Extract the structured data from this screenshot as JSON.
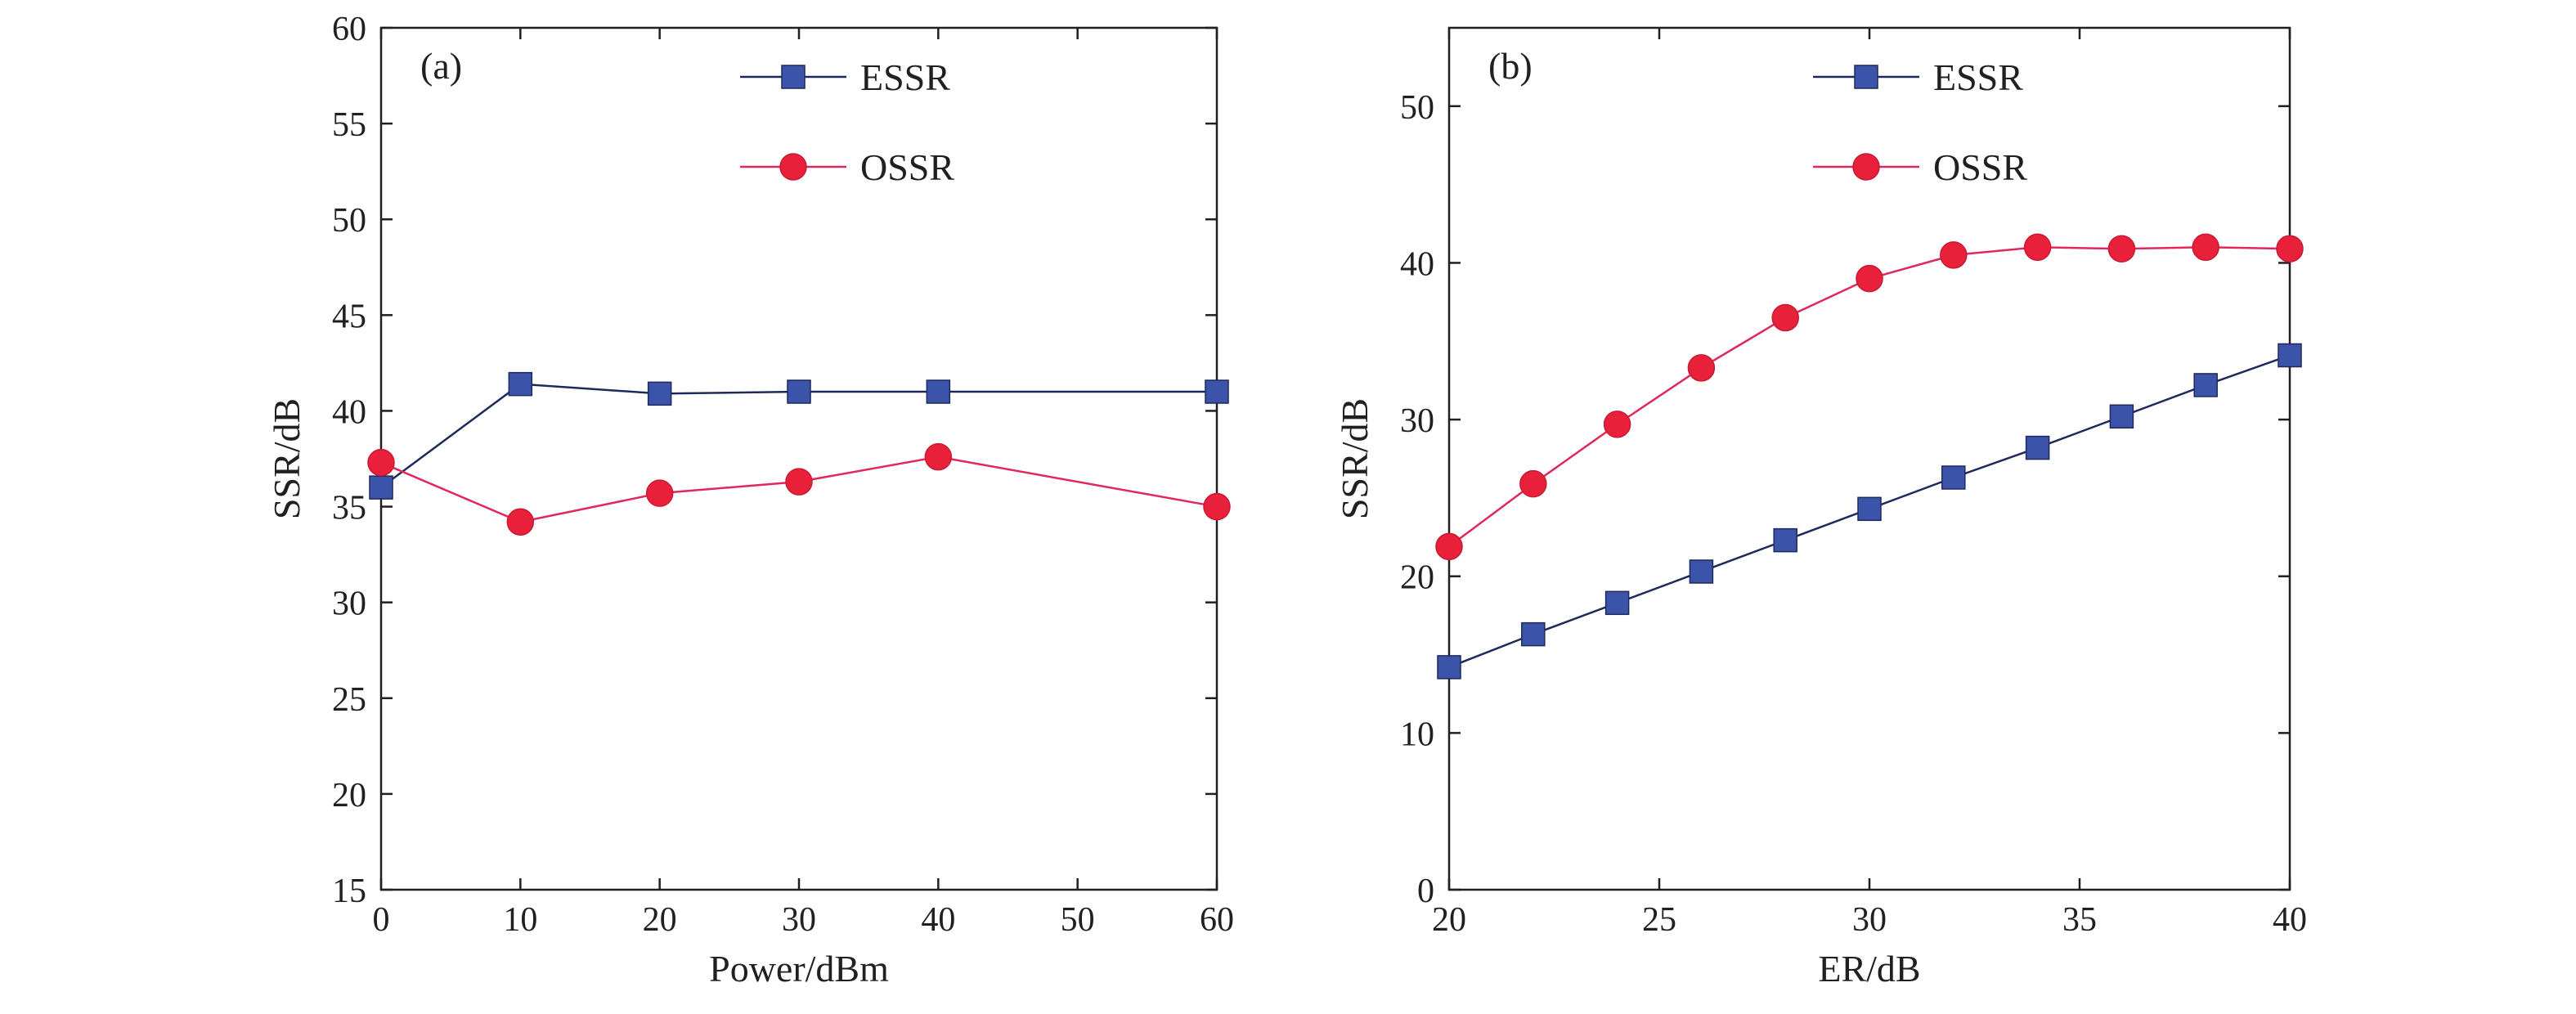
{
  "colors": {
    "essr_line": "#1f2a5c",
    "essr_marker": "#3b53a8",
    "ossr_line": "#e0285a",
    "ossr_marker": "#e8203a",
    "axis": "#231f20"
  },
  "chart_data": [
    {
      "type": "line",
      "panel_label": "(a)",
      "xlabel": "Power/dBm",
      "ylabel": "SSR/dB",
      "xlim": [
        0,
        60
      ],
      "ylim": [
        15,
        60
      ],
      "xticks": [
        0,
        10,
        20,
        30,
        40,
        50,
        60
      ],
      "yticks": [
        15,
        20,
        25,
        30,
        35,
        40,
        45,
        50,
        55,
        60
      ],
      "grid": false,
      "legend_position": "top-right",
      "series": [
        {
          "name": "ESSR",
          "marker": "square",
          "x": [
            0,
            10,
            20,
            30,
            40,
            60
          ],
          "y": [
            36.0,
            41.4,
            40.9,
            41.0,
            41.0,
            41.0
          ]
        },
        {
          "name": "OSSR",
          "marker": "circle",
          "x": [
            0,
            10,
            20,
            30,
            40,
            60
          ],
          "y": [
            37.3,
            34.2,
            35.7,
            36.3,
            37.6,
            35.0
          ]
        }
      ]
    },
    {
      "type": "line",
      "panel_label": "(b)",
      "xlabel": "ER/dB",
      "ylabel": "SSR/dB",
      "xlim": [
        20,
        40
      ],
      "ylim": [
        0,
        55
      ],
      "xticks": [
        20,
        25,
        30,
        35,
        40
      ],
      "yticks": [
        0,
        10,
        20,
        30,
        40,
        50
      ],
      "grid": false,
      "legend_position": "top-right",
      "series": [
        {
          "name": "ESSR",
          "marker": "square",
          "x": [
            20,
            22,
            24,
            26,
            28,
            30,
            32,
            34,
            36,
            38,
            40
          ],
          "y": [
            14.2,
            16.3,
            18.3,
            20.3,
            22.3,
            24.3,
            26.3,
            28.2,
            30.2,
            32.2,
            34.1
          ]
        },
        {
          "name": "OSSR",
          "marker": "circle",
          "x": [
            20,
            22,
            24,
            26,
            28,
            30,
            32,
            34,
            36,
            38,
            40
          ],
          "y": [
            21.9,
            25.9,
            29.7,
            33.3,
            36.5,
            39.0,
            40.5,
            41.0,
            40.9,
            41.0,
            40.9
          ]
        }
      ]
    }
  ]
}
